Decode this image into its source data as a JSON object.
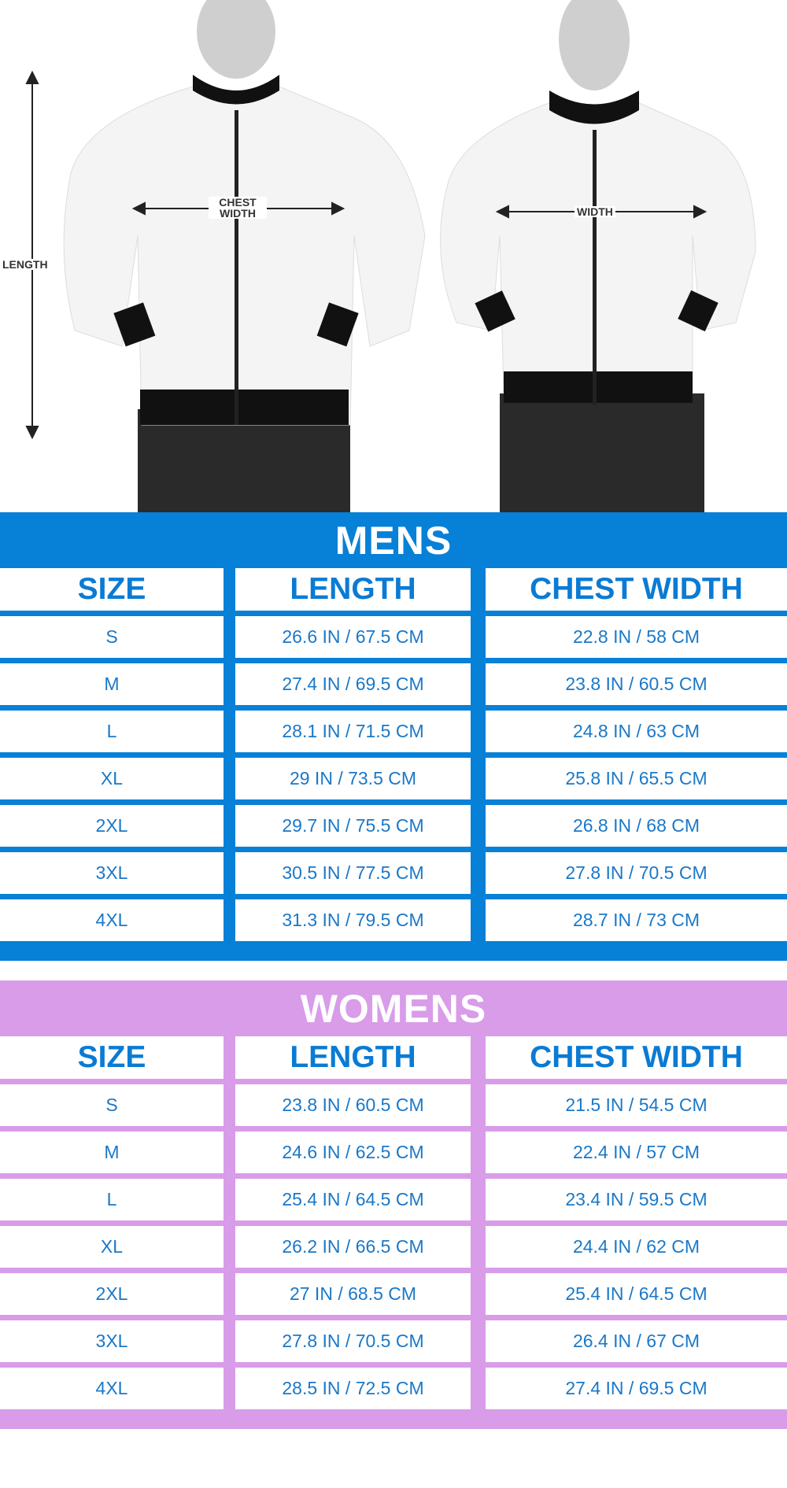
{
  "colors": {
    "mens": "#0780d8",
    "womens": "#d89ce9",
    "text": "#1a78c8"
  },
  "diagram": {
    "length_label": "LENGTH",
    "chest_width_label": "CHEST WIDTH",
    "width_label": "WIDTH"
  },
  "mens": {
    "title": "MENS",
    "headers": [
      "SIZE",
      "LENGTH",
      "CHEST WIDTH"
    ],
    "rows": [
      [
        "S",
        "26.6 IN / 67.5 CM",
        "22.8 IN / 58 CM"
      ],
      [
        "M",
        "27.4 IN / 69.5 CM",
        "23.8 IN / 60.5 CM"
      ],
      [
        "L",
        "28.1 IN / 71.5 CM",
        "24.8 IN / 63 CM"
      ],
      [
        "XL",
        "29 IN / 73.5 CM",
        "25.8 IN / 65.5 CM"
      ],
      [
        "2XL",
        "29.7 IN / 75.5 CM",
        "26.8 IN / 68 CM"
      ],
      [
        "3XL",
        "30.5 IN / 77.5 CM",
        "27.8 IN / 70.5 CM"
      ],
      [
        "4XL",
        "31.3 IN / 79.5 CM",
        "28.7 IN / 73 CM"
      ]
    ]
  },
  "womens": {
    "title": "WOMENS",
    "headers": [
      "SIZE",
      "LENGTH",
      "CHEST WIDTH"
    ],
    "rows": [
      [
        "S",
        "23.8 IN / 60.5 CM",
        "21.5 IN / 54.5 CM"
      ],
      [
        "M",
        "24.6 IN / 62.5 CM",
        "22.4 IN /  57 CM"
      ],
      [
        "L",
        "25.4 IN / 64.5 CM",
        "23.4 IN / 59.5 CM"
      ],
      [
        "XL",
        "26.2 IN / 66.5 CM",
        "24.4 IN / 62 CM"
      ],
      [
        "2XL",
        "27 IN / 68.5 CM",
        "25.4 IN / 64.5 CM"
      ],
      [
        "3XL",
        "27.8 IN / 70.5 CM",
        "26.4 IN / 67 CM"
      ],
      [
        "4XL",
        "28.5 IN / 72.5 CM",
        "27.4 IN / 69.5 CM"
      ]
    ]
  }
}
